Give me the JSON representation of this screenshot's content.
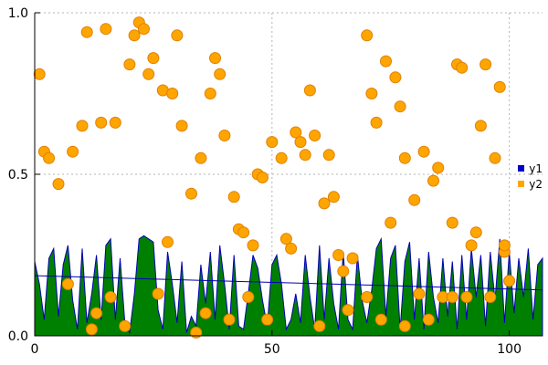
{
  "chart_data": {
    "type": "mixed",
    "title": "",
    "xlabel": "",
    "ylabel": "",
    "background": "#ffffff",
    "grid": true,
    "x_axis": {
      "min": 0,
      "max": 107,
      "ticks": [
        {
          "value": 0,
          "label": "0"
        },
        {
          "value": 50,
          "label": "50"
        },
        {
          "value": 100,
          "label": "100"
        }
      ]
    },
    "y_axis": {
      "min": 0,
      "max": 1.0,
      "ticks": [
        {
          "value": 0,
          "label": "0.0"
        },
        {
          "value": 0.5,
          "label": "0.5"
        },
        {
          "value": 1.0,
          "label": "1.0"
        }
      ]
    },
    "legend": {
      "position": "right-middle",
      "entries": [
        {
          "label": "y1",
          "color": "#0000c8"
        },
        {
          "label": "y2",
          "color": "#ffa500"
        }
      ]
    },
    "colors": {
      "area_fill": "#008000",
      "area_stroke": "#0000b4",
      "trend_stroke": "#0000b4",
      "scatter_fill": "#ffa500",
      "scatter_stroke": "#e08000",
      "grid_line": "#b4b4b4",
      "axis": "#000000"
    },
    "series": [
      {
        "name": "y1",
        "type": "area",
        "x_start": 0,
        "x_step": 1,
        "values": [
          0.23,
          0.16,
          0.05,
          0.24,
          0.27,
          0.06,
          0.22,
          0.28,
          0.11,
          0.02,
          0.27,
          0.04,
          0.13,
          0.25,
          0.05,
          0.28,
          0.3,
          0.05,
          0.24,
          0.04,
          0.01,
          0.13,
          0.3,
          0.31,
          0.3,
          0.29,
          0.08,
          0.02,
          0.26,
          0.16,
          0.04,
          0.23,
          0.01,
          0.06,
          0.03,
          0.22,
          0.1,
          0.26,
          0.05,
          0.28,
          0.16,
          0.02,
          0.25,
          0.03,
          0.02,
          0.13,
          0.25,
          0.21,
          0.11,
          0.03,
          0.22,
          0.25,
          0.16,
          0.02,
          0.05,
          0.13,
          0.04,
          0.25,
          0.12,
          0.02,
          0.28,
          0.05,
          0.24,
          0.1,
          0.02,
          0.26,
          0.05,
          0.02,
          0.25,
          0.11,
          0.04,
          0.14,
          0.27,
          0.3,
          0.06,
          0.24,
          0.28,
          0.02,
          0.23,
          0.29,
          0.05,
          0.24,
          0.02,
          0.26,
          0.12,
          0.04,
          0.24,
          0.06,
          0.23,
          0.02,
          0.25,
          0.05,
          0.27,
          0.12,
          0.25,
          0.03,
          0.26,
          0.11,
          0.3,
          0.04,
          0.26,
          0.07,
          0.24,
          0.12,
          0.27,
          0.05,
          0.22,
          0.24
        ]
      },
      {
        "name": "y1-fit",
        "type": "line",
        "x": [
          0,
          107
        ],
        "y": [
          0.186,
          0.142
        ]
      },
      {
        "name": "y2",
        "type": "scatter",
        "point_radius": 6,
        "points": [
          [
            1,
            0.81
          ],
          [
            2,
            0.57
          ],
          [
            3,
            0.55
          ],
          [
            5,
            0.47
          ],
          [
            7,
            0.16
          ],
          [
            8,
            0.57
          ],
          [
            10,
            0.65
          ],
          [
            11,
            0.94
          ],
          [
            12,
            0.02
          ],
          [
            13,
            0.07
          ],
          [
            14,
            0.66
          ],
          [
            15,
            0.95
          ],
          [
            16,
            0.12
          ],
          [
            17,
            0.66
          ],
          [
            19,
            0.03
          ],
          [
            20,
            0.84
          ],
          [
            21,
            0.93
          ],
          [
            22,
            0.97
          ],
          [
            23,
            0.95
          ],
          [
            24,
            0.81
          ],
          [
            25,
            0.86
          ],
          [
            26,
            0.13
          ],
          [
            27,
            0.76
          ],
          [
            28,
            0.29
          ],
          [
            29,
            0.75
          ],
          [
            30,
            0.93
          ],
          [
            31,
            0.65
          ],
          [
            33,
            0.44
          ],
          [
            34,
            0.01
          ],
          [
            35,
            0.55
          ],
          [
            36,
            0.07
          ],
          [
            37,
            0.75
          ],
          [
            38,
            0.86
          ],
          [
            39,
            0.81
          ],
          [
            40,
            0.62
          ],
          [
            41,
            0.05
          ],
          [
            42,
            0.43
          ],
          [
            43,
            0.33
          ],
          [
            44,
            0.32
          ],
          [
            45,
            0.12
          ],
          [
            46,
            0.28
          ],
          [
            47,
            0.5
          ],
          [
            48,
            0.49
          ],
          [
            49,
            0.05
          ],
          [
            50,
            0.6
          ],
          [
            52,
            0.55
          ],
          [
            53,
            0.3
          ],
          [
            54,
            0.27
          ],
          [
            55,
            0.63
          ],
          [
            56,
            0.6
          ],
          [
            57,
            0.56
          ],
          [
            58,
            0.76
          ],
          [
            59,
            0.62
          ],
          [
            60,
            0.03
          ],
          [
            61,
            0.41
          ],
          [
            62,
            0.56
          ],
          [
            63,
            0.43
          ],
          [
            64,
            0.25
          ],
          [
            65,
            0.2
          ],
          [
            66,
            0.08
          ],
          [
            67,
            0.24
          ],
          [
            70,
            0.93
          ],
          [
            70,
            0.12
          ],
          [
            71,
            0.75
          ],
          [
            72,
            0.66
          ],
          [
            73,
            0.05
          ],
          [
            74,
            0.85
          ],
          [
            75,
            0.35
          ],
          [
            76,
            0.8
          ],
          [
            77,
            0.71
          ],
          [
            78,
            0.55
          ],
          [
            78,
            0.03
          ],
          [
            80,
            0.42
          ],
          [
            81,
            0.13
          ],
          [
            82,
            0.57
          ],
          [
            83,
            0.05
          ],
          [
            84,
            0.48
          ],
          [
            85,
            0.52
          ],
          [
            86,
            0.12
          ],
          [
            88,
            0.35
          ],
          [
            88,
            0.12
          ],
          [
            89,
            0.84
          ],
          [
            90,
            0.83
          ],
          [
            91,
            0.12
          ],
          [
            92,
            0.28
          ],
          [
            93,
            0.32
          ],
          [
            94,
            0.65
          ],
          [
            95,
            0.84
          ],
          [
            96,
            0.12
          ],
          [
            97,
            0.55
          ],
          [
            98,
            0.77
          ],
          [
            99,
            0.26
          ],
          [
            99,
            0.28
          ],
          [
            100,
            0.17
          ]
        ]
      }
    ]
  }
}
